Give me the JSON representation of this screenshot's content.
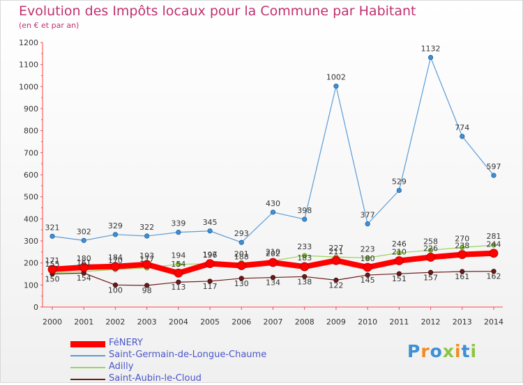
{
  "header": {
    "title": "Evolution des Impôts locaux pour la Commune par Habitant",
    "subtitle": "(en € et par an)"
  },
  "logo": {
    "letters": [
      "P",
      "r",
      "o",
      "x",
      "i",
      "t",
      "i"
    ],
    "colors": [
      "#3d8fd6",
      "#f28c1e",
      "#3d8fd6",
      "#8cc63f",
      "#f28c1e",
      "#3d8fd6",
      "#8cc63f"
    ]
  },
  "chart_data": {
    "type": "line",
    "title": "Evolution des Impôts locaux pour la Commune par Habitant",
    "subtitle": "(en € et par an)",
    "x": [
      "2000",
      "2001",
      "2002",
      "2003",
      "2004",
      "2005",
      "2006",
      "2007",
      "2008",
      "2009",
      "2010",
      "2011",
      "2012",
      "2013",
      "2014"
    ],
    "ylim": [
      0,
      1200
    ],
    "yticks": [
      0,
      100,
      200,
      300,
      400,
      500,
      600,
      700,
      800,
      900,
      1000,
      1100,
      1200
    ],
    "grid": false,
    "legend_position": "bottom-left",
    "series": [
      {
        "name": "FéNERY",
        "color": "#ff0000",
        "values": [
          171,
          180,
          184,
          193,
          154,
          197,
          188,
          202,
          183,
          211,
          180,
          210,
          226,
          238,
          244
        ]
      },
      {
        "name": "Saint-Germain-de-Longue-Chaume",
        "color": "#5b9bd5",
        "values": [
          321,
          302,
          329,
          322,
          339,
          345,
          293,
          430,
          398,
          1002,
          377,
          529,
          1132,
          774,
          597
        ]
      },
      {
        "name": "Adilly",
        "color": "#99d45a",
        "values": [
          155,
          161,
          170,
          177,
          194,
          196,
          201,
          210,
          233,
          227,
          223,
          246,
          258,
          270,
          281
        ]
      },
      {
        "name": "Saint-Aubin-le-Cloud",
        "color": "#6b1a1a",
        "values": [
          150,
          154,
          100,
          98,
          113,
          117,
          130,
          134,
          138,
          122,
          145,
          151,
          157,
          161,
          162
        ]
      }
    ]
  }
}
